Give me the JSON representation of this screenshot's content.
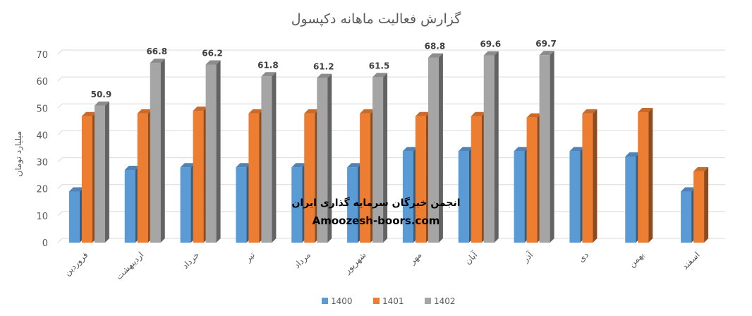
{
  "chart_data": {
    "type": "bar",
    "title": "گزارش فعالیت ماهانه دکپسول",
    "ylabel": "میلیارد تومان",
    "xlabel": "",
    "ylim": [
      0,
      70
    ],
    "yticks": [
      0,
      10,
      20,
      30,
      40,
      50,
      60,
      70
    ],
    "grid": true,
    "legend_position": "bottom",
    "categories": [
      "فروردین",
      "اردیبهشت",
      "خرداد",
      "تیر",
      "مرداد",
      "شهریور",
      "مهر",
      "آبان",
      "آذر",
      "دی",
      "بهمن",
      "اسفند"
    ],
    "series": [
      {
        "name": "1400",
        "color": "#5B9BD5",
        "values": [
          19,
          27,
          28,
          28,
          28,
          28,
          34,
          34,
          34,
          34,
          32,
          19
        ]
      },
      {
        "name": "1401",
        "color": "#ED7D31",
        "values": [
          47,
          48,
          49,
          48,
          48,
          48,
          47,
          47,
          46.5,
          48,
          48.5,
          26.5
        ]
      },
      {
        "name": "1402",
        "color": "#A5A5A5",
        "values": [
          50.9,
          66.8,
          66.2,
          61.8,
          61.2,
          61.5,
          68.8,
          69.6,
          69.7,
          null,
          null,
          null
        ]
      }
    ],
    "data_labels_series": "1402"
  },
  "watermark": {
    "line1": "انجمن خبرگان سرمایه گذاری ایران",
    "line2": "Amoozesh-boors.com"
  }
}
